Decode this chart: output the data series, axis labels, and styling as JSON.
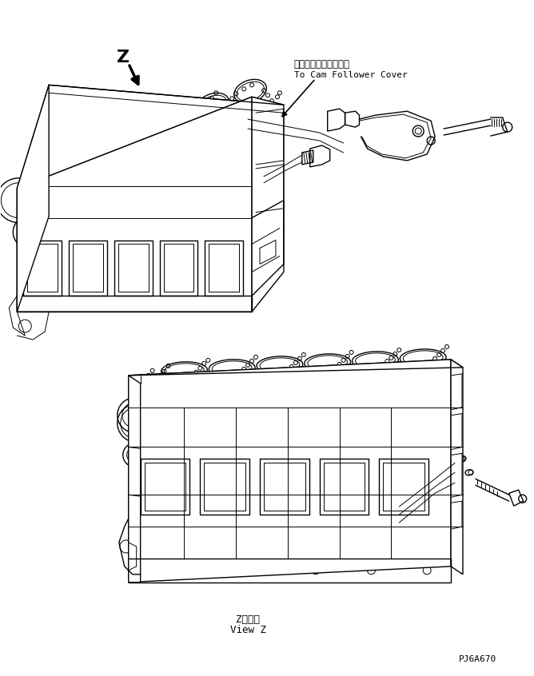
{
  "bg_color": "#ffffff",
  "line_color": "#000000",
  "text_color": "#000000",
  "label_jp": "カムフォロワカバーヘ",
  "label_en": "To Cam Follower Cover",
  "view_jp": "Z　　視",
  "view_en": "View Z",
  "z_label": "Z",
  "part_code": "PJ6A670",
  "figsize": [
    6.68,
    8.46
  ],
  "dpi": 100
}
